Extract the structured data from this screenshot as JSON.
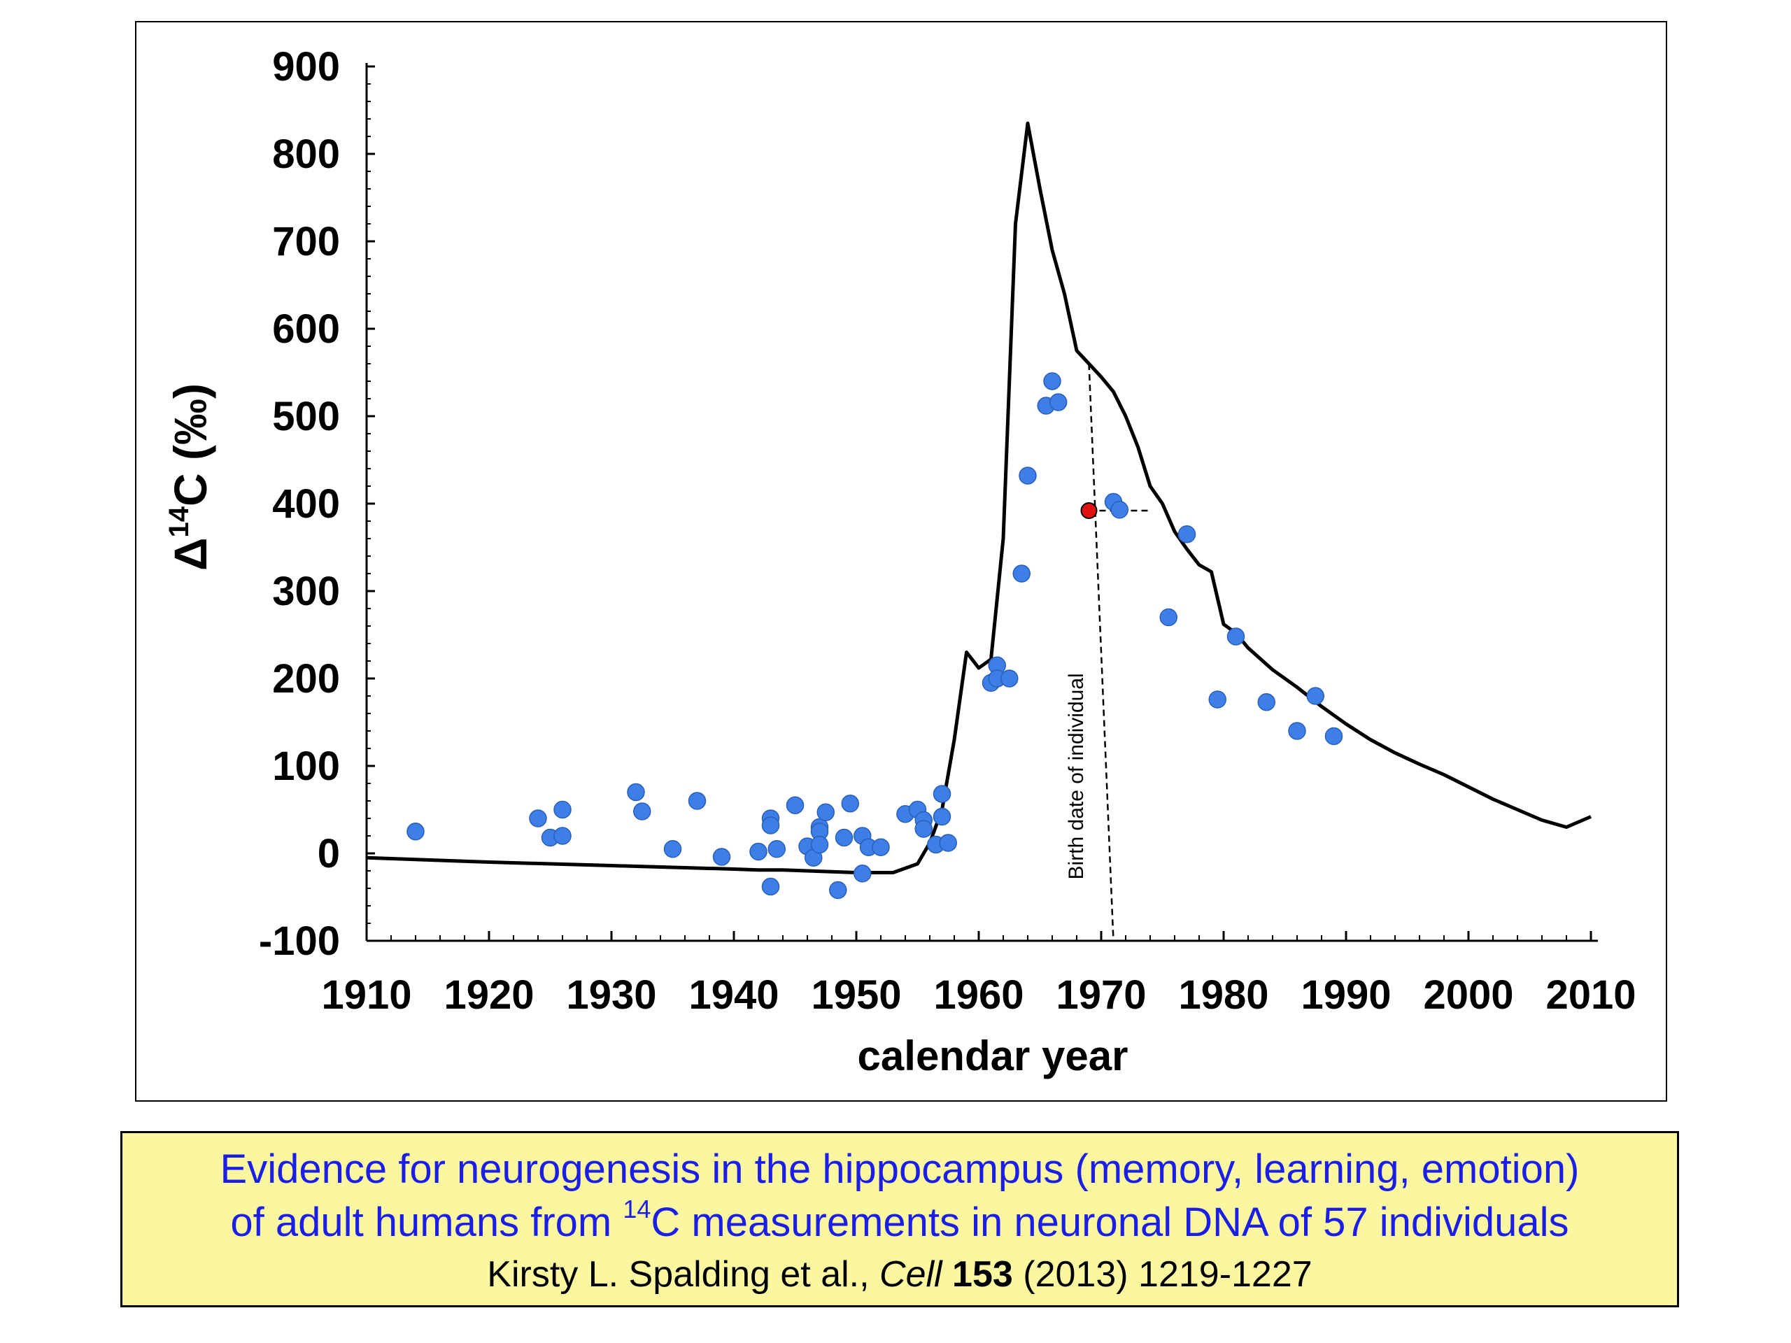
{
  "chart_data": {
    "type": "scatter",
    "xlabel": "calendar year",
    "ylabel_prefix": "Δ",
    "ylabel_sup": "14",
    "ylabel_suffix": "C (‰)",
    "xlim": [
      1910,
      2010
    ],
    "ylim": [
      -100,
      900
    ],
    "x_ticks": [
      1910,
      1920,
      1930,
      1940,
      1950,
      1960,
      1970,
      1980,
      1990,
      2000,
      2010
    ],
    "y_ticks": [
      -100,
      0,
      100,
      200,
      300,
      400,
      500,
      600,
      700,
      800,
      900
    ],
    "grid": false,
    "colors": {
      "points": "#3d7fe6",
      "highlight": "#e01010",
      "curve": "#000000"
    },
    "curve": {
      "x": [
        1910,
        1920,
        1930,
        1940,
        1942,
        1944,
        1946,
        1948,
        1950,
        1953,
        1955,
        1956,
        1957,
        1958,
        1959,
        1960,
        1961,
        1962,
        1963,
        1964,
        1965,
        1966,
        1967,
        1968,
        1969,
        1970,
        1971,
        1972,
        1973,
        1974,
        1975,
        1976,
        1977,
        1978,
        1979,
        1980,
        1981,
        1982,
        1984,
        1986,
        1988,
        1990,
        1992,
        1994,
        1996,
        1998,
        2000,
        2002,
        2004,
        2006,
        2008,
        2010
      ],
      "y": [
        -5,
        -10,
        -14,
        -18,
        -19,
        -19,
        -20,
        -21,
        -22,
        -22,
        -12,
        12,
        50,
        130,
        230,
        212,
        222,
        360,
        720,
        835,
        760,
        690,
        640,
        575,
        560,
        545,
        528,
        500,
        465,
        420,
        400,
        368,
        348,
        330,
        322,
        262,
        252,
        235,
        210,
        190,
        168,
        148,
        130,
        115,
        102,
        90,
        76,
        62,
        50,
        38,
        30,
        42
      ]
    },
    "points": [
      {
        "x": 1914,
        "y": 25
      },
      {
        "x": 1924,
        "y": 40
      },
      {
        "x": 1925,
        "y": 18
      },
      {
        "x": 1926,
        "y": 20
      },
      {
        "x": 1926,
        "y": 50
      },
      {
        "x": 1932,
        "y": 70
      },
      {
        "x": 1932.5,
        "y": 48
      },
      {
        "x": 1935,
        "y": 5
      },
      {
        "x": 1937,
        "y": 60
      },
      {
        "x": 1939,
        "y": -4
      },
      {
        "x": 1942,
        "y": 2
      },
      {
        "x": 1943,
        "y": 40
      },
      {
        "x": 1943,
        "y": 32
      },
      {
        "x": 1943.5,
        "y": 5
      },
      {
        "x": 1943,
        "y": -38
      },
      {
        "x": 1945,
        "y": 55
      },
      {
        "x": 1946,
        "y": 8
      },
      {
        "x": 1946.5,
        "y": -5
      },
      {
        "x": 1947,
        "y": 30
      },
      {
        "x": 1947,
        "y": 25
      },
      {
        "x": 1947,
        "y": 10
      },
      {
        "x": 1947.5,
        "y": 47
      },
      {
        "x": 1948.5,
        "y": -42
      },
      {
        "x": 1949,
        "y": 18
      },
      {
        "x": 1949.5,
        "y": 57
      },
      {
        "x": 1950.5,
        "y": 20
      },
      {
        "x": 1950.5,
        "y": -23
      },
      {
        "x": 1951,
        "y": 7
      },
      {
        "x": 1952,
        "y": 7
      },
      {
        "x": 1954,
        "y": 45
      },
      {
        "x": 1955,
        "y": 50
      },
      {
        "x": 1955.5,
        "y": 38
      },
      {
        "x": 1955.5,
        "y": 28
      },
      {
        "x": 1956.5,
        "y": 10
      },
      {
        "x": 1957,
        "y": 68
      },
      {
        "x": 1957,
        "y": 42
      },
      {
        "x": 1957.5,
        "y": 12
      },
      {
        "x": 1961,
        "y": 195
      },
      {
        "x": 1961.5,
        "y": 215
      },
      {
        "x": 1961.5,
        "y": 200
      },
      {
        "x": 1962.5,
        "y": 200
      },
      {
        "x": 1963.5,
        "y": 320
      },
      {
        "x": 1964,
        "y": 432
      },
      {
        "x": 1965.5,
        "y": 512
      },
      {
        "x": 1966,
        "y": 540
      },
      {
        "x": 1966.5,
        "y": 516
      },
      {
        "x": 1971,
        "y": 402
      },
      {
        "x": 1971.5,
        "y": 393
      },
      {
        "x": 1975.5,
        "y": 270
      },
      {
        "x": 1977,
        "y": 365
      },
      {
        "x": 1979.5,
        "y": 176
      },
      {
        "x": 1981,
        "y": 248
      },
      {
        "x": 1983.5,
        "y": 173
      },
      {
        "x": 1986,
        "y": 140
      },
      {
        "x": 1987.5,
        "y": 180
      },
      {
        "x": 1989,
        "y": 134
      }
    ],
    "highlight_point": {
      "x": 1969,
      "y": 392
    },
    "birth_marker": {
      "x_top": 1969,
      "y_top": 560,
      "x_bottom": 1971,
      "y_bottom": -100,
      "horiz_to_x": 1974,
      "label": "Birth date of individual"
    }
  },
  "caption": {
    "line1": "Evidence for neurogenesis in the hippocampus (memory, learning, emotion)",
    "line2_pre": "of adult humans from ",
    "line2_sup": "14",
    "line2_post": "C measurements in neuronal DNA of 57 individuals",
    "citation_author": "Kirsty L. Spalding et al., ",
    "citation_journal": "Cell",
    "citation_volume": "153",
    "citation_rest": " (2013) 1219-1227"
  }
}
